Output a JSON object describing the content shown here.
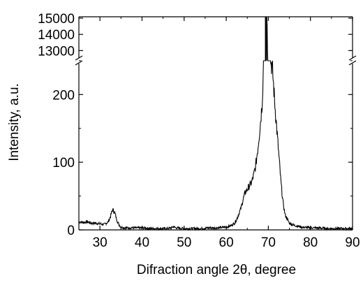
{
  "chart_data": {
    "type": "line",
    "title": "",
    "xlabel": "Difraction angle 2θ, degree",
    "ylabel": "Intensity, a.u.",
    "xlim": [
      25,
      90
    ],
    "x_ticks": [
      "30",
      "40",
      "50",
      "60",
      "70",
      "80",
      "90"
    ],
    "y_lower": {
      "range": [
        0,
        255
      ],
      "ticks": [
        "0",
        "100",
        "200"
      ]
    },
    "y_upper": {
      "range": [
        12500,
        15000
      ],
      "ticks": [
        "13000",
        "14000",
        "15000"
      ]
    },
    "axis_break": "broken y-axis between 255 and 12500",
    "grid": false,
    "line_color": "#000000",
    "series": [
      {
        "x": [
          25,
          26,
          27,
          28,
          29,
          30,
          31,
          32,
          32.5,
          33,
          33.5,
          34,
          34.5,
          35,
          36,
          38,
          40,
          42,
          44,
          46,
          47,
          47.5,
          48,
          50,
          52,
          54,
          56,
          58,
          60,
          61,
          62,
          62.5,
          63,
          63.5,
          64,
          64.5,
          65,
          65.5,
          66,
          66.5,
          67,
          67.5,
          68,
          68.5,
          68.8,
          69,
          69.2,
          69.5,
          69.7,
          70,
          70.3,
          70.6,
          71,
          71.5,
          72,
          72.5,
          73,
          73.5,
          74,
          75,
          76,
          78,
          80,
          82,
          84,
          86,
          88,
          90
        ],
        "y": [
          12,
          11,
          12,
          10,
          10,
          9,
          8,
          12,
          20,
          30,
          26,
          15,
          8,
          4,
          3,
          3,
          3,
          2,
          2,
          2,
          3,
          5,
          3,
          2,
          2,
          2,
          3,
          3,
          4,
          6,
          10,
          16,
          24,
          32,
          45,
          55,
          60,
          65,
          70,
          80,
          95,
          120,
          150,
          185,
          230,
          900,
          9000,
          15000,
          15000,
          9000,
          900,
          250,
          235,
          190,
          150,
          110,
          70,
          40,
          22,
          10,
          7,
          4,
          3,
          3,
          2,
          2,
          2,
          2
        ]
      }
    ]
  }
}
